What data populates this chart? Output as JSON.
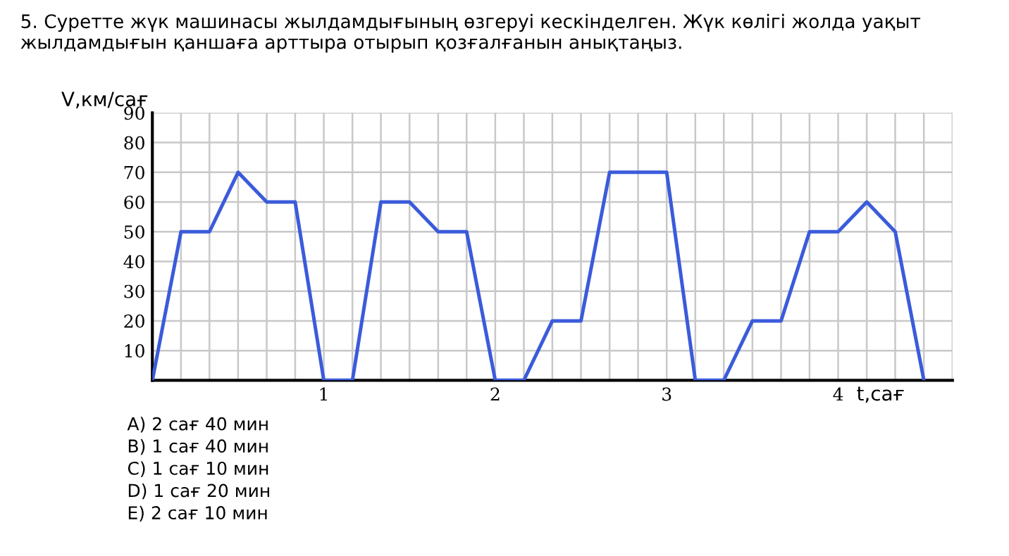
{
  "chart_data": {
    "type": "line",
    "title": "5. Суретте жүк машинасы жылдамдығының өзгеруі кескінделген. Жүк көлігі жолда уақыт жылдамдығын қаншаға арттыра отырып қозғалғанын анықтаңыз.",
    "xlabel": "t,сағ",
    "ylabel": "V,км/сағ",
    "x": [
      0,
      0.167,
      0.333,
      0.5,
      0.667,
      0.833,
      1,
      1.167,
      1.333,
      1.5,
      1.667,
      1.833,
      2,
      2.167,
      2.333,
      2.5,
      2.667,
      2.833,
      3,
      3.167,
      3.333,
      3.5,
      3.667,
      3.833,
      4,
      4.167,
      4.333,
      4.5
    ],
    "series": [
      {
        "color": "#3b5bdb",
        "values": [
          0,
          50,
          50,
          70,
          60,
          60,
          0,
          0,
          60,
          60,
          50,
          50,
          0,
          0,
          20,
          20,
          70,
          70,
          70,
          0,
          0,
          20,
          20,
          50,
          50,
          60,
          50,
          0
        ]
      }
    ],
    "xlim": [
      0,
      4.667
    ],
    "ylim": [
      0,
      90
    ],
    "xticks": [
      {
        "value": 0.167,
        "label": null
      },
      {
        "value": 0.333,
        "label": null
      },
      {
        "value": 0.5,
        "label": null
      },
      {
        "value": 0.667,
        "label": null
      },
      {
        "value": 0.833,
        "label": null
      },
      1,
      {
        "value": 1.167,
        "label": null
      },
      {
        "value": 1.333,
        "label": null
      },
      {
        "value": 1.5,
        "label": null
      },
      {
        "value": 1.667,
        "label": null
      },
      {
        "value": 1.833,
        "label": null
      },
      2,
      {
        "value": 2.167,
        "label": null
      },
      {
        "value": 2.333,
        "label": null
      },
      {
        "value": 2.5,
        "label": null
      },
      {
        "value": 2.667,
        "label": null
      },
      {
        "value": 2.833,
        "label": null
      },
      3,
      {
        "value": 3.167,
        "label": null
      },
      {
        "value": 3.333,
        "label": null
      },
      {
        "value": 3.5,
        "label": null
      },
      {
        "value": 3.667,
        "label": null
      },
      {
        "value": 3.833,
        "label": null
      },
      4,
      {
        "value": 4.167,
        "label": null
      },
      {
        "value": 4.333,
        "label": null
      },
      {
        "value": 4.5,
        "label": null
      },
      {
        "value": 4.667,
        "label": null
      }
    ],
    "yticks": [
      10,
      20,
      30,
      40,
      50,
      60,
      70,
      80,
      90
    ],
    "grid": true,
    "marker": "none",
    "line_style": "solid",
    "legend": false,
    "annotations": [
      "A) 2 сағ 40 мин",
      "B) 1 сағ 40 мин",
      "C) 1 сағ 10 мин",
      "D) 1 сағ 20 мин",
      "E) 2 сағ 10 мин"
    ]
  }
}
